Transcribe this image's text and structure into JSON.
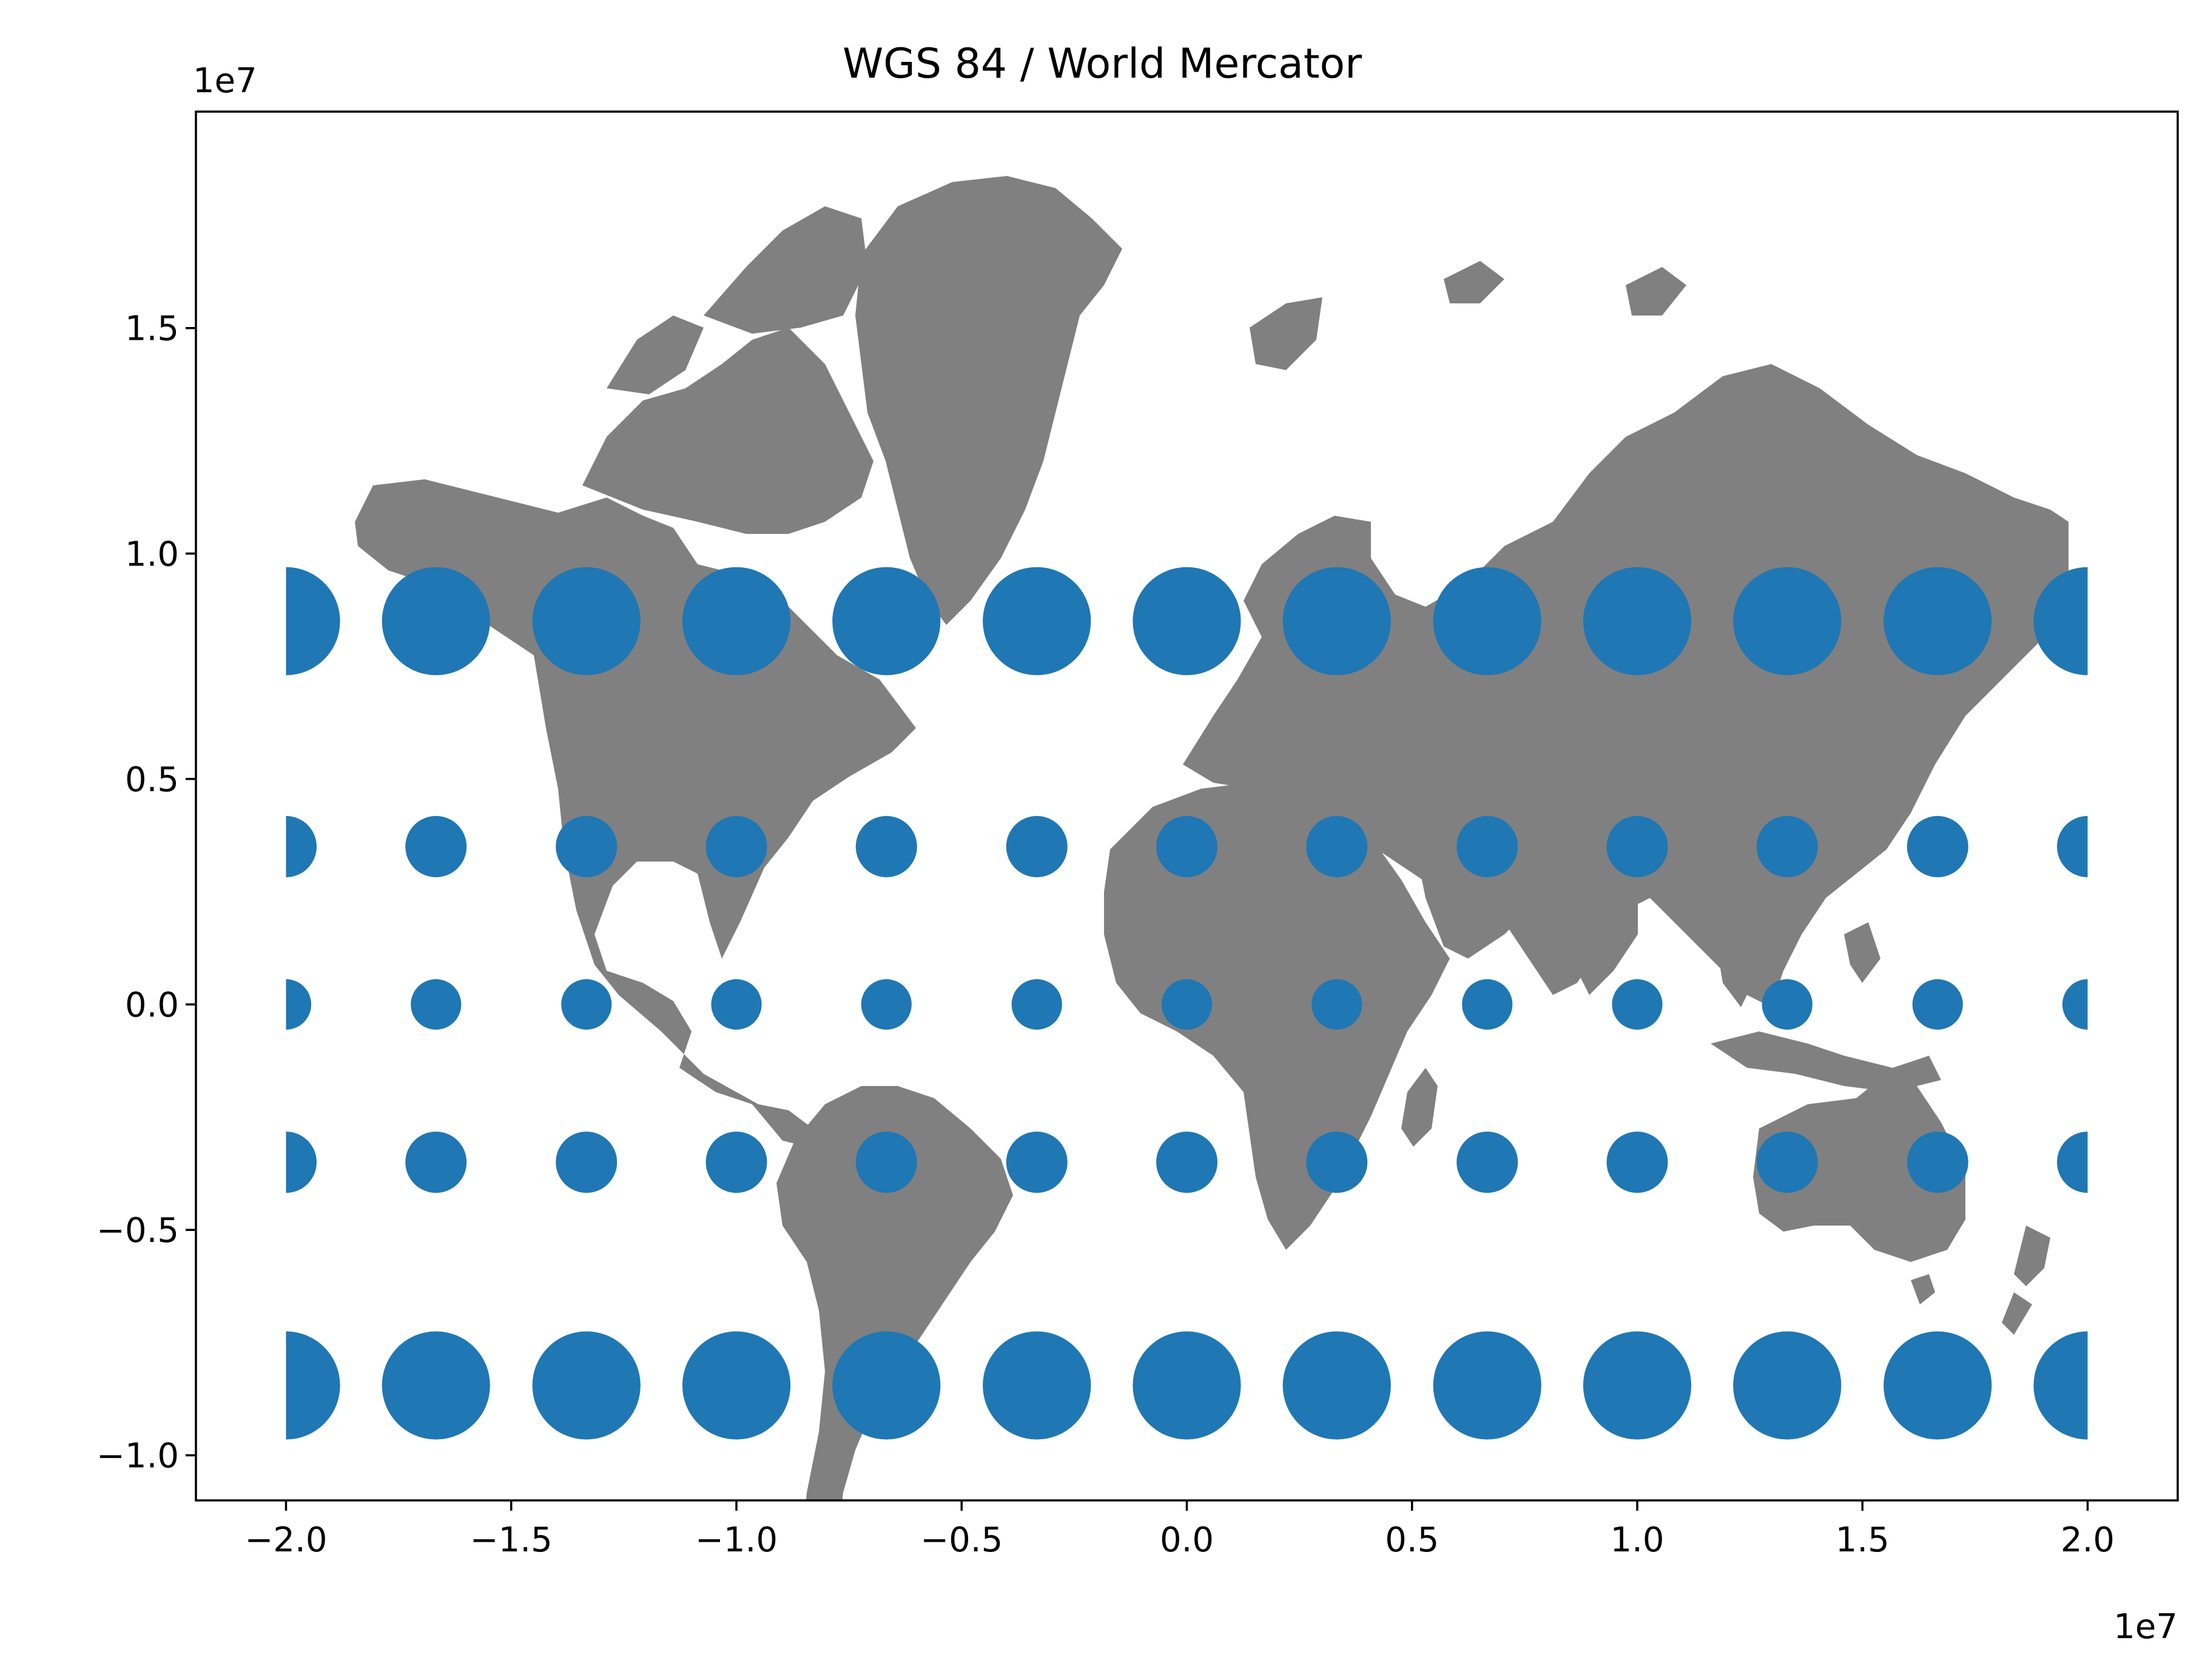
{
  "chart_data": {
    "type": "scatter",
    "title": "WGS 84 / World Mercator",
    "xlabel": "",
    "ylabel": "",
    "xlim": [
      -22000000,
      22000000
    ],
    "ylim": [
      -11000000,
      19800000
    ],
    "x_offset_label": "1e7",
    "y_offset_label": "1e7",
    "x_ticks": [
      -20000000,
      -15000000,
      -10000000,
      -5000000,
      0,
      5000000,
      10000000,
      15000000,
      20000000
    ],
    "x_tick_labels": [
      "−2.0",
      "−1.5",
      "−1.0",
      "−0.5",
      "0.0",
      "0.5",
      "1.0",
      "1.5",
      "2.0"
    ],
    "y_ticks": [
      -10000000,
      -5000000,
      0,
      5000000,
      10000000,
      15000000
    ],
    "y_tick_labels": [
      "−1.0",
      "−0.5",
      "0.0",
      "0.5",
      "1.0",
      "1.5"
    ],
    "grid": false,
    "basemap": {
      "name": "world-countries",
      "color": "#808080"
    },
    "series": [
      {
        "color": "#1f77b4",
        "x": [
          -20000000,
          -16670000,
          -13330000,
          -10000000,
          -6670000,
          -3330000,
          0,
          3330000,
          6670000,
          10000000,
          13330000,
          16670000,
          20000000
        ],
        "rows": [
          {
            "y": 8500000,
            "radius_m": 1200000
          },
          {
            "y": 3500000,
            "radius_m": 680000
          },
          {
            "y": 0,
            "radius_m": 560000
          },
          {
            "y": -3500000,
            "radius_m": 680000
          },
          {
            "y": -8450000,
            "radius_m": 1200000
          }
        ]
      }
    ],
    "clip_x": [
      -20000000,
      20000000
    ]
  }
}
